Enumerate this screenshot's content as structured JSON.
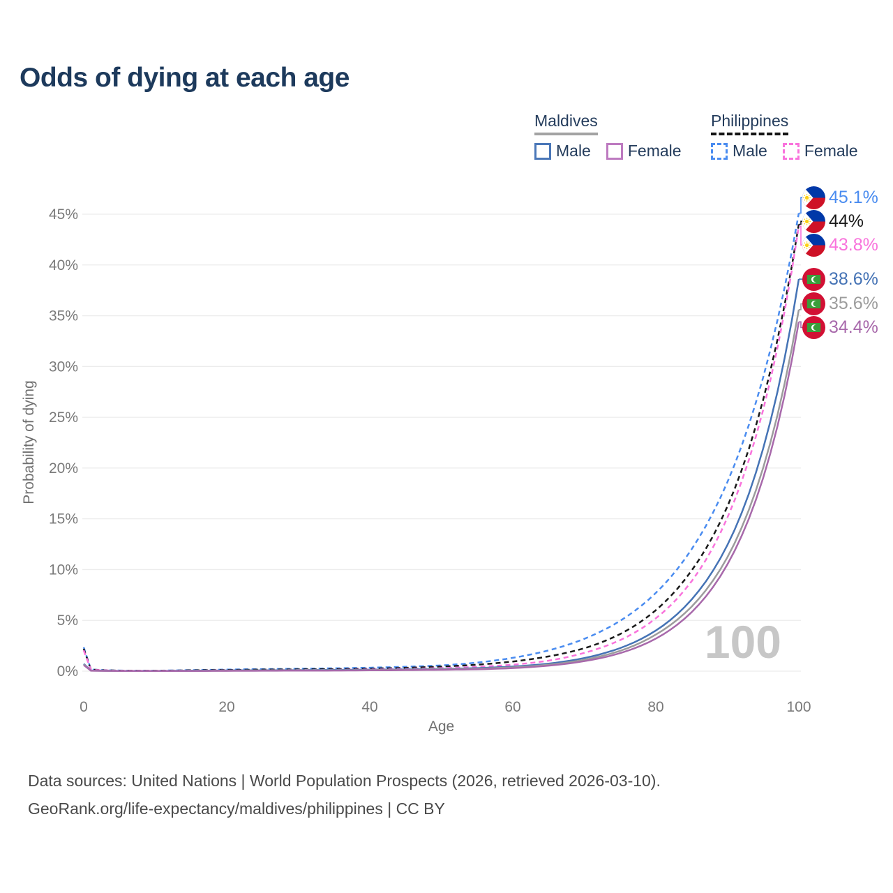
{
  "title": "Odds of dying at each age",
  "legend": {
    "groups": [
      {
        "name": "Maldives",
        "line_style": "solid",
        "underline_color": "#a3a3a3",
        "items": [
          {
            "label": "Male",
            "box_color": "#4a77b8",
            "box_style": "solid"
          },
          {
            "label": "Female",
            "box_color": "#bd7ac0",
            "box_style": "solid"
          }
        ]
      },
      {
        "name": "Philippines",
        "line_style": "dashed",
        "underline_color": "#141414",
        "items": [
          {
            "label": "Male",
            "box_color": "#4a8cf0",
            "box_style": "dashed"
          },
          {
            "label": "Female",
            "box_color": "#f973dc",
            "box_style": "dashed"
          }
        ]
      }
    ]
  },
  "chart_data": {
    "type": "line",
    "title": "Odds of dying at each age",
    "xlabel": "Age",
    "ylabel": "Probability of dying",
    "xlim": [
      0,
      100
    ],
    "ylim_percent": [
      0,
      47
    ],
    "grid": "horizontal",
    "legend_position": "top-right",
    "watermark": "100",
    "xticks": [
      "0",
      "20",
      "40",
      "60",
      "80",
      "100"
    ],
    "yticks": [
      "0%",
      "5%",
      "10%",
      "15%",
      "20%",
      "25%",
      "30%",
      "35%",
      "40%",
      "45%"
    ],
    "ages": [
      0,
      1,
      5,
      10,
      15,
      20,
      25,
      30,
      35,
      40,
      45,
      50,
      55,
      60,
      65,
      70,
      75,
      80,
      85,
      90,
      95,
      100
    ],
    "series": [
      {
        "name": "Philippines Male",
        "country": "Philippines",
        "sex": "male",
        "style": "dashed",
        "color": "#4a8cf0",
        "flag": "ph",
        "end_label": "45.1%",
        "label_color": "#4a8cf0",
        "values": [
          2.35,
          0.16,
          0.06,
          0.05,
          0.1,
          0.16,
          0.2,
          0.24,
          0.28,
          0.34,
          0.43,
          0.56,
          0.84,
          1.31,
          2.04,
          3.18,
          4.95,
          7.7,
          12.0,
          18.6,
          28.9,
          45.1
        ]
      },
      {
        "name": "Philippines",
        "country": "Philippines",
        "sex": "both",
        "style": "dashed",
        "color": "#1a1a1a",
        "flag": "ph",
        "end_label": "44%",
        "label_color": "#1a1a1a",
        "values": [
          2.2,
          0.15,
          0.05,
          0.04,
          0.08,
          0.12,
          0.15,
          0.17,
          0.2,
          0.25,
          0.33,
          0.45,
          0.63,
          0.95,
          1.45,
          2.25,
          3.65,
          6.0,
          9.9,
          16.2,
          26.7,
          44.0
        ]
      },
      {
        "name": "Philippines Female",
        "country": "Philippines",
        "sex": "female",
        "style": "dashed",
        "color": "#f973dc",
        "flag": "ph",
        "end_label": "43.8%",
        "label_color": "#f973dc",
        "values": [
          2.05,
          0.14,
          0.04,
          0.03,
          0.05,
          0.07,
          0.09,
          0.11,
          0.13,
          0.17,
          0.23,
          0.3,
          0.42,
          0.63,
          1.03,
          1.8,
          3.05,
          5.2,
          8.85,
          15.1,
          25.7,
          43.8
        ]
      },
      {
        "name": "Maldives Male",
        "country": "Maldives",
        "sex": "male",
        "style": "solid",
        "color": "#4573b5",
        "flag": "mv",
        "end_label": "38.6%",
        "label_color": "#4573b5",
        "values": [
          0.72,
          0.06,
          0.02,
          0.02,
          0.04,
          0.07,
          0.09,
          0.1,
          0.12,
          0.14,
          0.17,
          0.22,
          0.3,
          0.45,
          0.74,
          1.29,
          2.27,
          4.0,
          7.05,
          12.4,
          21.9,
          38.6
        ]
      },
      {
        "name": "Maldives",
        "country": "Maldives",
        "sex": "both",
        "style": "solid",
        "color": "#9c9c9c",
        "flag": "mv",
        "end_label": "35.6%",
        "label_color": "#9c9c9c",
        "values": [
          0.66,
          0.05,
          0.02,
          0.02,
          0.03,
          0.05,
          0.07,
          0.08,
          0.09,
          0.11,
          0.14,
          0.18,
          0.25,
          0.37,
          0.63,
          1.12,
          2.0,
          3.6,
          6.35,
          11.2,
          20.0,
          35.6
        ]
      },
      {
        "name": "Maldives Female",
        "country": "Maldives",
        "sex": "female",
        "style": "solid",
        "color": "#a869ab",
        "flag": "mv",
        "end_label": "34.4%",
        "label_color": "#a869ab",
        "values": [
          0.6,
          0.04,
          0.02,
          0.01,
          0.02,
          0.03,
          0.04,
          0.05,
          0.06,
          0.08,
          0.1,
          0.13,
          0.18,
          0.3,
          0.54,
          0.98,
          1.77,
          3.2,
          5.8,
          10.5,
          19.0,
          34.4
        ]
      }
    ]
  },
  "footer": {
    "line1": "Data sources: United Nations | World Population Prospects (2026, retrieved 2026-03-10).",
    "line2": "GeoRank.org/life-expectancy/maldives/philippines | CC BY"
  }
}
